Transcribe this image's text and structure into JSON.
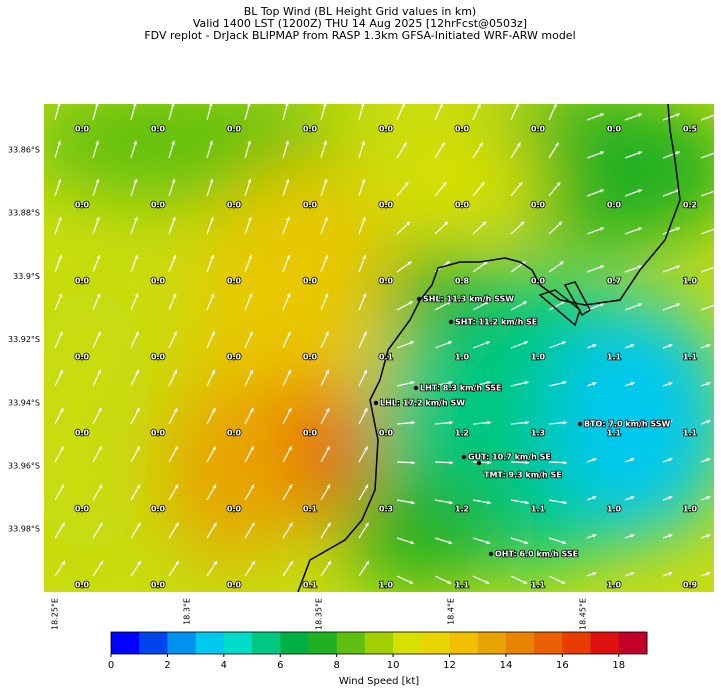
{
  "header": {
    "lines": [
      "BL Top Wind (BL Height Grid values in km)",
      "Valid 1400 LST (1200Z) THU 14 Aug 2025 [12hrFcst@0503z]",
      "FDV replot - DrJack BLIPMAP from RASP 1.3km GFSA-Initiated WRF-ARW model"
    ]
  },
  "map": {
    "lat_labels": [
      "33.86°S",
      "33.88°S",
      "33.9°S",
      "33.92°S",
      "33.94°S",
      "33.96°S",
      "33.98°S"
    ],
    "lon_labels": [
      "18.25°E",
      "18.3°E",
      "18.35°E",
      "18.4°E",
      "18.45°E"
    ],
    "grid_values": [
      [
        "0.0",
        "0.0",
        "0.0",
        "0.0",
        "0.0",
        "0.0",
        "0.0",
        "0.0",
        "0.5"
      ],
      [
        "0.0",
        "0.0",
        "0.0",
        "0.0",
        "0.0",
        "0.0",
        "0.0",
        "0.0",
        "0.2"
      ],
      [
        "0.0",
        "0.0",
        "0.0",
        "0.0",
        "0.0",
        "0.8",
        "0.0",
        "0.7",
        "1.0"
      ],
      [
        "0.0",
        "0.0",
        "0.0",
        "0.0",
        "0.1",
        "1.0",
        "1.0",
        "1.1",
        "1.1"
      ],
      [
        "0.0",
        "0.0",
        "0.0",
        "0.0",
        "0.0",
        "1.2",
        "1.3",
        "1.1",
        "1.1"
      ],
      [
        "0.0",
        "0.0",
        "0.0",
        "0.1",
        "0.3",
        "1.2",
        "1.1",
        "1.0",
        "1.0"
      ],
      [
        "0.0",
        "0.0",
        "0.0",
        "0.1",
        "1.0",
        "1.1",
        "1.1",
        "1.0",
        "0.9"
      ]
    ],
    "stations": [
      "SHL: 11.3 km/h SSW",
      "SHT: 11.2 km/h SE",
      "LHT: 8.3 km/h SSE",
      "LHL: 17.2 km/h SW",
      "BTO: 7.0 km/h SSW",
      "GUT: 10.7 km/h SE",
      "TMT: 9.3 km/h SE",
      "OHT: 6.0 km/h SSE"
    ]
  },
  "colorbar": {
    "label": "Wind Speed [kt]",
    "lim": [
      0,
      19
    ],
    "ticks": [
      0,
      2,
      4,
      6,
      8,
      10,
      12,
      14,
      16,
      18
    ],
    "colors": [
      "#0000ff",
      "#0044ee",
      "#0090ee",
      "#00c8ee",
      "#00dcc8",
      "#00c880",
      "#00b044",
      "#20b020",
      "#60c010",
      "#a0d000",
      "#d8e000",
      "#e8d400",
      "#f0c000",
      "#e8a400",
      "#e88400",
      "#e86000",
      "#e83c00",
      "#e01010",
      "#c00028"
    ]
  }
}
